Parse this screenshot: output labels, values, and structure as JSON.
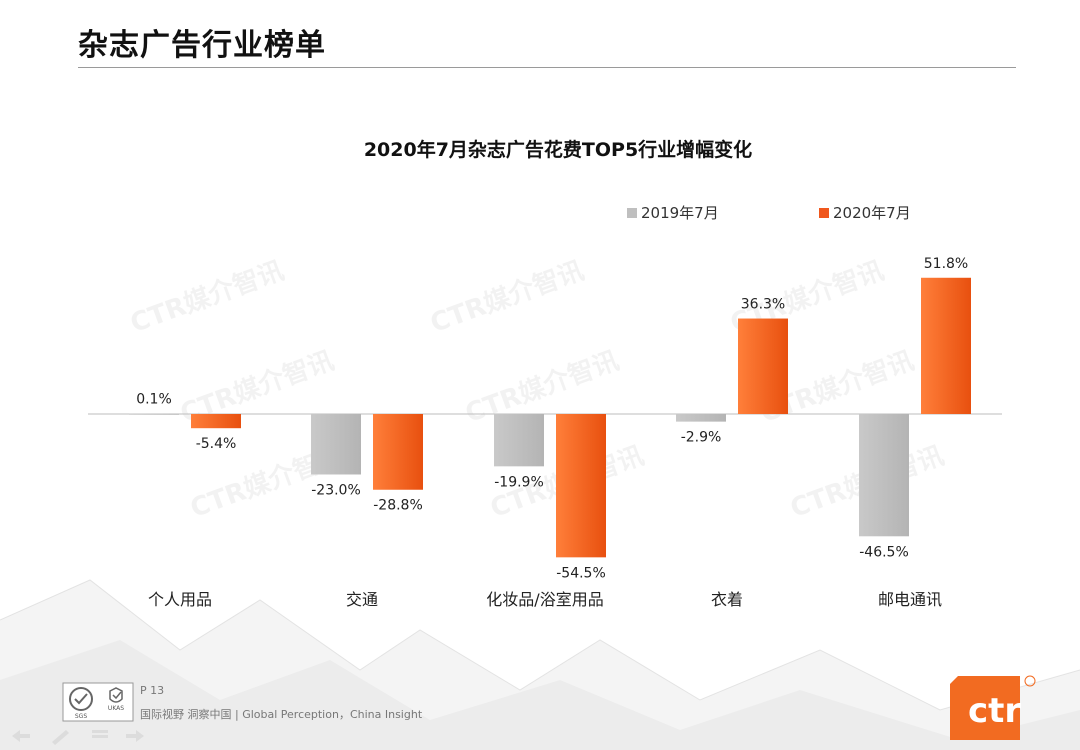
{
  "slide": {
    "title": "杂志广告行业榜单",
    "page_number": "P 13",
    "tagline": "国际视野  洞察中国 |  Global Perception，China Insight",
    "watermark": "CTR媒介智讯",
    "logo_text": "ctr",
    "cert_left": "SGS",
    "cert_right": "UKAS"
  },
  "colors": {
    "series_2019": "#bfbfbf",
    "series_2020": "#f0571d",
    "series_2020_light": "#ff7a33"
  },
  "chart_data": {
    "type": "bar",
    "title": "2020年7月杂志广告花费TOP5行业增幅变化",
    "categories": [
      "个人用品",
      "交通",
      "化妆品/浴室用品",
      "衣着",
      "邮电通讯"
    ],
    "series": [
      {
        "name": "2019年7月",
        "values": [
          0.1,
          -23.0,
          -19.9,
          -2.9,
          -46.5
        ],
        "labels": [
          "0.1%",
          "-23.0%",
          "-19.9%",
          "-2.9%",
          "-46.5%"
        ]
      },
      {
        "name": "2020年7月",
        "values": [
          -5.4,
          -28.8,
          -54.5,
          36.3,
          51.8
        ],
        "labels": [
          "-5.4%",
          "-28.8%",
          "-54.5%",
          "36.3%",
          "51.8%"
        ]
      }
    ],
    "ylim": [
      -60,
      60
    ],
    "legend": "top-right",
    "grid": false,
    "xlabel": "",
    "ylabel": ""
  }
}
